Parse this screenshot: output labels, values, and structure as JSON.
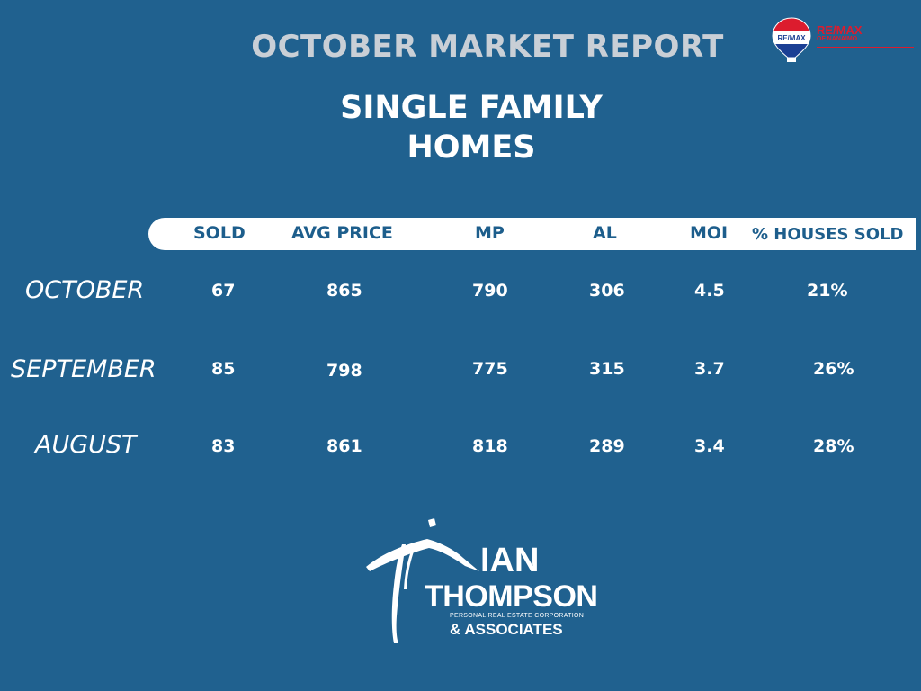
{
  "report_title": "OCTOBER MARKET REPORT",
  "subtitle_line1": "SINGLE FAMILY",
  "subtitle_line2": "HOMES",
  "remax_logo": {
    "brand": "RE/MAX",
    "sub": "OF NANAIMO",
    "balloon_text": "RE/MAX",
    "colors": {
      "red": "#dc1c2e",
      "blue": "#1b3f94"
    }
  },
  "table": {
    "headers": [
      "SOLD",
      "AVG PRICE",
      "MP",
      "AL",
      "MOI",
      "% HOUSES SOLD"
    ],
    "rows": [
      {
        "month": "OCTOBER",
        "values": [
          "67",
          "865",
          "790",
          "306",
          "4.5",
          "21%"
        ]
      },
      {
        "month": "SEPTEMBER",
        "values": [
          "85",
          "798",
          "775",
          "315",
          "3.7",
          "26%"
        ]
      },
      {
        "month": "AUGUST",
        "values": [
          "83",
          "861",
          "818",
          "289",
          "3.4",
          "28%"
        ]
      }
    ]
  },
  "agent_logo": {
    "name_line1": "IAN",
    "name_line2": "THOMPSON",
    "corporation": "PERSONAL REAL ESTATE CORPORATION",
    "associates": "& ASSOCIATES"
  },
  "colors": {
    "background": "#20618f",
    "title_gray": "#c9cfd6",
    "header_text": "#1d5e8c"
  }
}
